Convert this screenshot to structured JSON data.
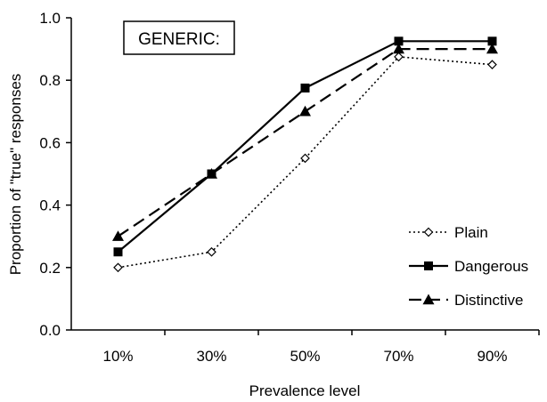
{
  "chart_data": {
    "type": "line",
    "box_label": "GENERIC:",
    "xlabel": "Prevalence level",
    "ylabel": "Proportion of \"true\" responses",
    "categories": [
      "10%",
      "30%",
      "50%",
      "70%",
      "90%"
    ],
    "ylim": [
      0,
      1
    ],
    "yticks": [
      "0.0",
      "0.2",
      "0.4",
      "0.6",
      "0.8",
      "1.0"
    ],
    "grid": false,
    "legend_position": "bottom-right",
    "series": [
      {
        "name": "Plain",
        "values": [
          0.2,
          0.25,
          0.55,
          0.875,
          0.85
        ],
        "line_style": "dotted",
        "marker": "open-diamond",
        "color": "#000000"
      },
      {
        "name": "Dangerous",
        "values": [
          0.25,
          0.5,
          0.775,
          0.925,
          0.925
        ],
        "line_style": "solid",
        "marker": "filled-square",
        "color": "#000000"
      },
      {
        "name": "Distinctive",
        "values": [
          0.3,
          0.5,
          0.7,
          0.9,
          0.9
        ],
        "line_style": "dashed",
        "marker": "filled-triangle",
        "color": "#000000"
      }
    ]
  }
}
